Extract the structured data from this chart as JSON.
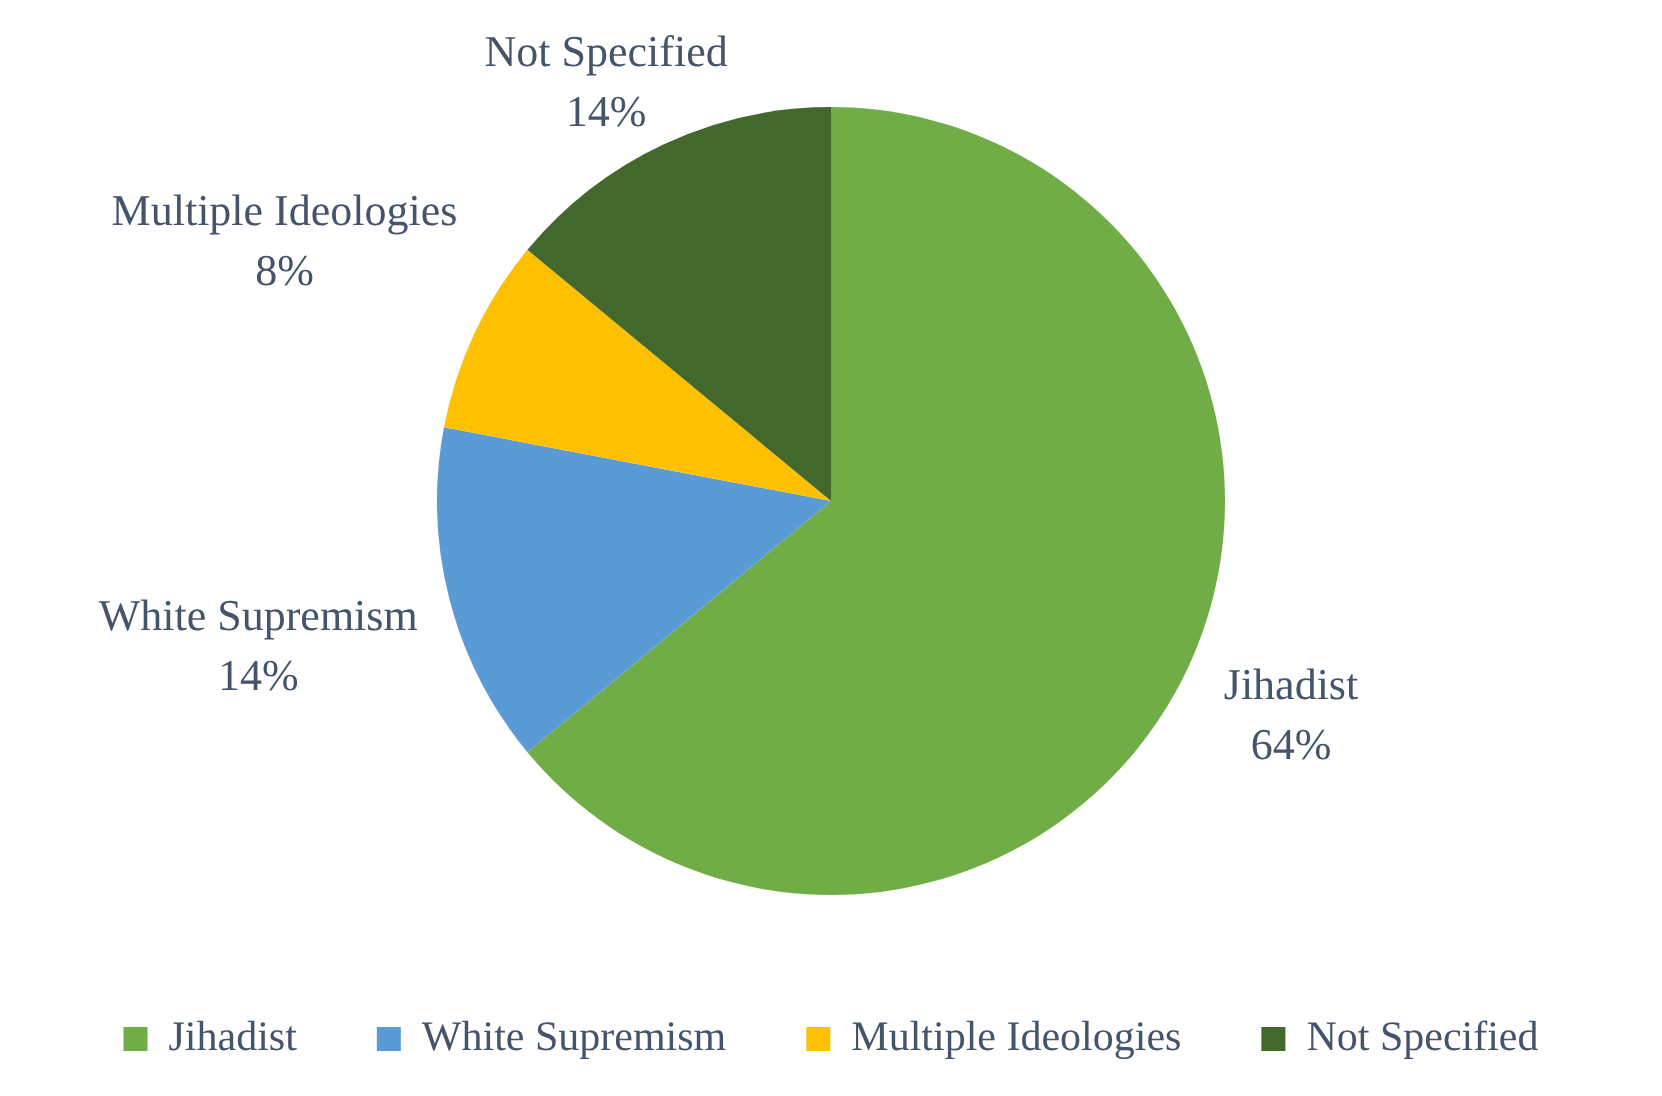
{
  "chart_data": {
    "type": "pie",
    "categories": [
      "Jihadist",
      "White Supremism",
      "Multiple Ideologies",
      "Not Specified"
    ],
    "values": [
      64,
      14,
      8,
      14
    ],
    "colors": [
      "#70ad47",
      "#5b9bd5",
      "#ffc000",
      "#43682b"
    ],
    "value_labels": [
      "64%",
      "14%",
      "8%",
      "14%"
    ],
    "legend": "bottom"
  }
}
